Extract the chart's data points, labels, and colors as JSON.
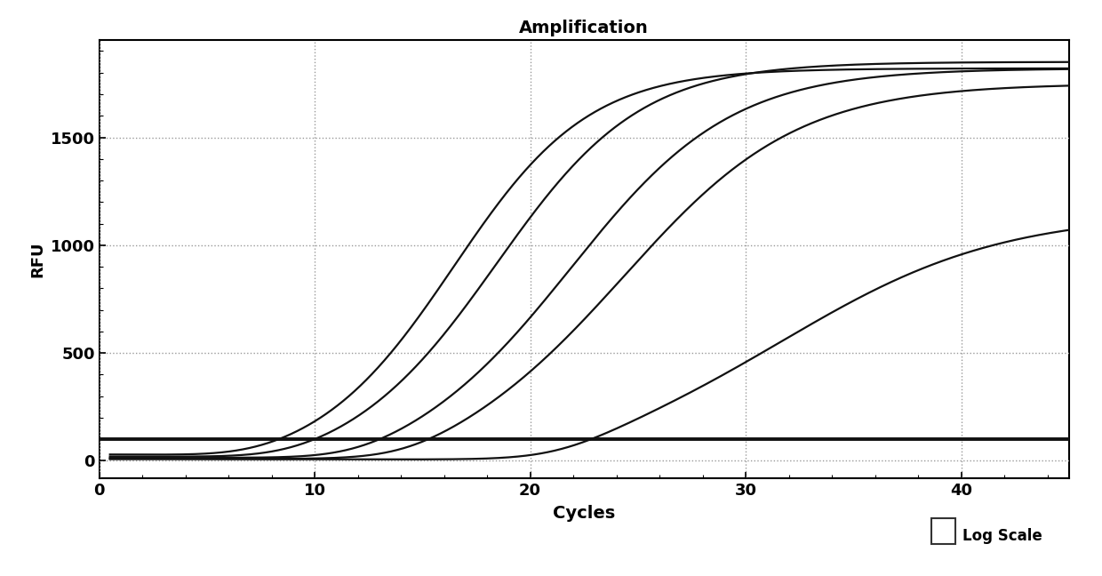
{
  "title": "Amplification",
  "xlabel": "Cycles",
  "ylabel": "RFU",
  "xlim": [
    0,
    45
  ],
  "ylim": [
    -80,
    1950
  ],
  "yticks": [
    0,
    500,
    1000,
    1500
  ],
  "xticks": [
    0,
    10,
    20,
    30,
    40
  ],
  "threshold_y": 100,
  "background_color": "#ffffff",
  "grid_color": "#999999",
  "line_color": "#111111",
  "curves": [
    {
      "L": 1820,
      "k": 0.32,
      "x0": 16.5,
      "noise_amp": 30,
      "noise_x0": 8
    },
    {
      "L": 1850,
      "k": 0.3,
      "x0": 18.5,
      "noise_amp": 20,
      "noise_x0": 8
    },
    {
      "L": 1820,
      "k": 0.27,
      "x0": 22.0,
      "noise_amp": 15,
      "noise_x0": 10
    },
    {
      "L": 1750,
      "k": 0.25,
      "x0": 24.5,
      "noise_amp": 10,
      "noise_x0": 12
    },
    {
      "L": 1150,
      "k": 0.2,
      "x0": 32.0,
      "noise_amp": 8,
      "noise_x0": 15
    }
  ],
  "log_scale_x": 0.845,
  "log_scale_y": 0.055
}
